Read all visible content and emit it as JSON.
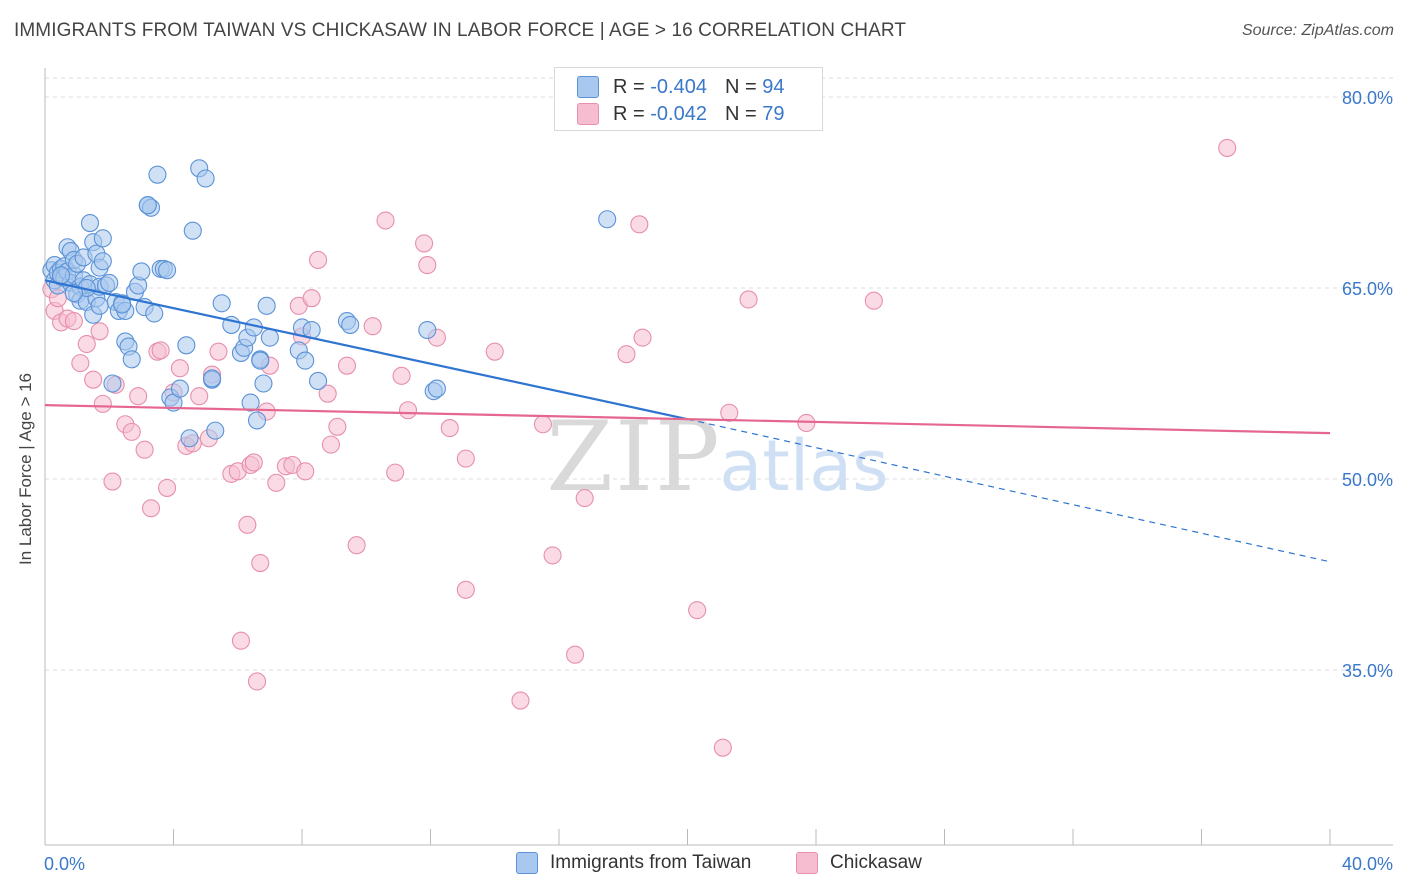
{
  "header": {
    "title": "IMMIGRANTS FROM TAIWAN VS CHICKASAW IN LABOR FORCE | AGE > 16 CORRELATION CHART",
    "source": "Source: ZipAtlas.com"
  },
  "legend": {
    "rows": [
      {
        "r_label": "R = ",
        "r_value": "-0.404",
        "n_label": "N = ",
        "n_value": "94"
      },
      {
        "r_label": "R = ",
        "r_value": "-0.042",
        "n_label": "N = ",
        "n_value": "79"
      }
    ]
  },
  "watermark": {
    "zip": "ZIP",
    "atlas": "atlas"
  },
  "colors": {
    "blue_fill": "#a9c8ef",
    "blue_stroke": "#5b93d6",
    "blue_line": "#2e74d0",
    "pink_fill": "#f6bdd0",
    "pink_stroke": "#e78fad",
    "pink_line": "#e5668f",
    "tick_text": "#3a78c9",
    "grid": "#dddddd"
  },
  "chart_data": {
    "type": "scatter",
    "title": "IMMIGRANTS FROM TAIWAN VS CHICKASAW IN LABOR FORCE | AGE > 16 CORRELATION CHART",
    "ylabel": "In Labor Force | Age > 16",
    "xlabel": "",
    "xlim": [
      0,
      40
    ],
    "ylim": [
      20,
      83
    ],
    "x_ticks": [
      "0.0%",
      "40.0%"
    ],
    "y_ticks": [
      {
        "value": 80,
        "label": "80.0%"
      },
      {
        "value": 65,
        "label": "65.0%"
      },
      {
        "value": 50,
        "label": "50.0%"
      },
      {
        "value": 35,
        "label": "35.0%"
      }
    ],
    "series": [
      {
        "name": "Immigrants from Taiwan",
        "r": -0.404,
        "n": 94,
        "trend": {
          "x0": 0,
          "y0": 65.6,
          "x1": 20,
          "y1": 54.7,
          "dash_x1": 40,
          "dash_y1": 43.5
        },
        "points": [
          [
            0.2,
            66.4
          ],
          [
            0.3,
            65.6
          ],
          [
            0.3,
            66.8
          ],
          [
            0.4,
            65.2
          ],
          [
            0.4,
            66.2
          ],
          [
            0.5,
            66.5
          ],
          [
            0.5,
            65.9
          ],
          [
            0.6,
            66.7
          ],
          [
            0.6,
            65.8
          ],
          [
            0.7,
            66.3
          ],
          [
            0.7,
            68.2
          ],
          [
            0.8,
            67.9
          ],
          [
            0.8,
            65.4
          ],
          [
            0.9,
            66.0
          ],
          [
            0.9,
            67.2
          ],
          [
            1.0,
            64.5
          ],
          [
            1.0,
            66.9
          ],
          [
            1.1,
            65.1
          ],
          [
            1.1,
            64.0
          ],
          [
            1.2,
            67.4
          ],
          [
            1.2,
            65.6
          ],
          [
            1.3,
            63.9
          ],
          [
            1.4,
            70.1
          ],
          [
            1.4,
            65.3
          ],
          [
            1.5,
            68.6
          ],
          [
            1.5,
            62.9
          ],
          [
            1.6,
            67.7
          ],
          [
            1.6,
            64.2
          ],
          [
            1.7,
            66.6
          ],
          [
            1.7,
            65.1
          ],
          [
            1.8,
            67.1
          ],
          [
            1.8,
            68.9
          ],
          [
            1.9,
            65.2
          ],
          [
            2.0,
            65.4
          ],
          [
            2.1,
            57.5
          ],
          [
            2.2,
            63.9
          ],
          [
            2.3,
            63.2
          ],
          [
            2.4,
            63.8
          ],
          [
            2.5,
            60.8
          ],
          [
            2.6,
            60.4
          ],
          [
            2.7,
            59.4
          ],
          [
            2.8,
            64.7
          ],
          [
            2.9,
            65.2
          ],
          [
            3.0,
            66.3
          ],
          [
            3.1,
            63.5
          ],
          [
            3.2,
            71.5
          ],
          [
            3.3,
            71.3
          ],
          [
            3.4,
            63.0
          ],
          [
            3.5,
            73.9
          ],
          [
            3.6,
            66.5
          ],
          [
            3.7,
            66.5
          ],
          [
            3.8,
            66.4
          ],
          [
            3.9,
            56.4
          ],
          [
            4.0,
            56.0
          ],
          [
            4.2,
            57.1
          ],
          [
            4.4,
            60.5
          ],
          [
            4.5,
            53.2
          ],
          [
            4.6,
            69.5
          ],
          [
            4.8,
            74.4
          ],
          [
            5.0,
            73.6
          ],
          [
            5.2,
            57.8
          ],
          [
            5.3,
            53.8
          ],
          [
            5.5,
            63.8
          ],
          [
            5.8,
            62.1
          ],
          [
            6.1,
            59.9
          ],
          [
            6.2,
            60.3
          ],
          [
            6.3,
            61.1
          ],
          [
            6.4,
            56.0
          ],
          [
            6.5,
            61.9
          ],
          [
            6.6,
            54.6
          ],
          [
            6.7,
            59.4
          ],
          [
            6.8,
            57.5
          ],
          [
            6.9,
            63.6
          ],
          [
            7.0,
            61.1
          ],
          [
            7.9,
            60.1
          ],
          [
            8.0,
            61.9
          ],
          [
            8.1,
            59.3
          ],
          [
            8.3,
            61.7
          ],
          [
            8.5,
            57.7
          ],
          [
            9.4,
            62.4
          ],
          [
            9.5,
            62.1
          ],
          [
            11.9,
            61.7
          ],
          [
            12.1,
            56.9
          ],
          [
            12.2,
            57.1
          ],
          [
            17.5,
            70.4
          ],
          [
            3.2,
            71.5
          ],
          [
            2.5,
            63.2
          ],
          [
            1.3,
            65.0
          ],
          [
            0.9,
            64.6
          ],
          [
            2.4,
            63.7
          ],
          [
            5.2,
            57.9
          ],
          [
            6.7,
            59.3
          ],
          [
            0.5,
            66.0
          ],
          [
            1.7,
            63.6
          ]
        ]
      },
      {
        "name": "Chickasaw",
        "r": -0.042,
        "n": 79,
        "trend": {
          "x0": 0,
          "y0": 55.8,
          "x1": 40,
          "y1": 53.6
        },
        "points": [
          [
            0.2,
            64.9
          ],
          [
            0.3,
            63.2
          ],
          [
            0.4,
            64.2
          ],
          [
            0.5,
            62.3
          ],
          [
            0.7,
            62.6
          ],
          [
            0.9,
            62.4
          ],
          [
            1.1,
            59.1
          ],
          [
            1.3,
            60.6
          ],
          [
            1.5,
            57.8
          ],
          [
            1.7,
            61.6
          ],
          [
            1.8,
            55.9
          ],
          [
            2.1,
            49.8
          ],
          [
            2.2,
            57.4
          ],
          [
            2.5,
            54.3
          ],
          [
            2.7,
            53.7
          ],
          [
            2.9,
            56.5
          ],
          [
            3.1,
            52.3
          ],
          [
            3.3,
            47.7
          ],
          [
            3.5,
            60.0
          ],
          [
            3.6,
            60.1
          ],
          [
            3.8,
            49.3
          ],
          [
            4.0,
            56.8
          ],
          [
            4.2,
            58.7
          ],
          [
            4.4,
            52.6
          ],
          [
            4.6,
            52.8
          ],
          [
            4.8,
            56.5
          ],
          [
            5.1,
            53.2
          ],
          [
            5.2,
            58.2
          ],
          [
            5.4,
            60.0
          ],
          [
            5.8,
            50.4
          ],
          [
            6.0,
            50.6
          ],
          [
            6.1,
            37.3
          ],
          [
            6.3,
            46.4
          ],
          [
            6.4,
            51.1
          ],
          [
            6.5,
            51.3
          ],
          [
            6.6,
            34.1
          ],
          [
            6.7,
            43.4
          ],
          [
            6.9,
            55.3
          ],
          [
            7.0,
            58.9
          ],
          [
            7.2,
            49.7
          ],
          [
            7.5,
            51.0
          ],
          [
            7.7,
            51.1
          ],
          [
            7.9,
            63.6
          ],
          [
            8.0,
            61.2
          ],
          [
            8.1,
            50.6
          ],
          [
            8.3,
            64.2
          ],
          [
            8.5,
            67.2
          ],
          [
            8.8,
            56.7
          ],
          [
            8.9,
            52.7
          ],
          [
            9.1,
            54.1
          ],
          [
            9.4,
            58.9
          ],
          [
            9.7,
            44.8
          ],
          [
            10.2,
            62.0
          ],
          [
            10.6,
            70.3
          ],
          [
            10.9,
            50.5
          ],
          [
            11.1,
            58.1
          ],
          [
            11.3,
            55.4
          ],
          [
            11.8,
            68.5
          ],
          [
            11.9,
            66.8
          ],
          [
            12.2,
            61.1
          ],
          [
            12.6,
            54.0
          ],
          [
            13.1,
            41.3
          ],
          [
            13.1,
            51.6
          ],
          [
            14.0,
            60.0
          ],
          [
            14.8,
            32.6
          ],
          [
            15.5,
            54.3
          ],
          [
            15.8,
            44.0
          ],
          [
            16.5,
            36.2
          ],
          [
            16.8,
            48.5
          ],
          [
            18.1,
            59.8
          ],
          [
            18.5,
            70.0
          ],
          [
            18.6,
            61.1
          ],
          [
            20.3,
            39.7
          ],
          [
            21.1,
            28.9
          ],
          [
            21.3,
            55.2
          ],
          [
            21.9,
            64.1
          ],
          [
            23.7,
            54.4
          ],
          [
            25.8,
            64.0
          ],
          [
            36.8,
            76.0
          ]
        ]
      }
    ],
    "grid": true,
    "legend_position": "top-center"
  },
  "bottom_legend": {
    "items": [
      {
        "label": "Immigrants from Taiwan"
      },
      {
        "label": "Chickasaw"
      }
    ]
  }
}
